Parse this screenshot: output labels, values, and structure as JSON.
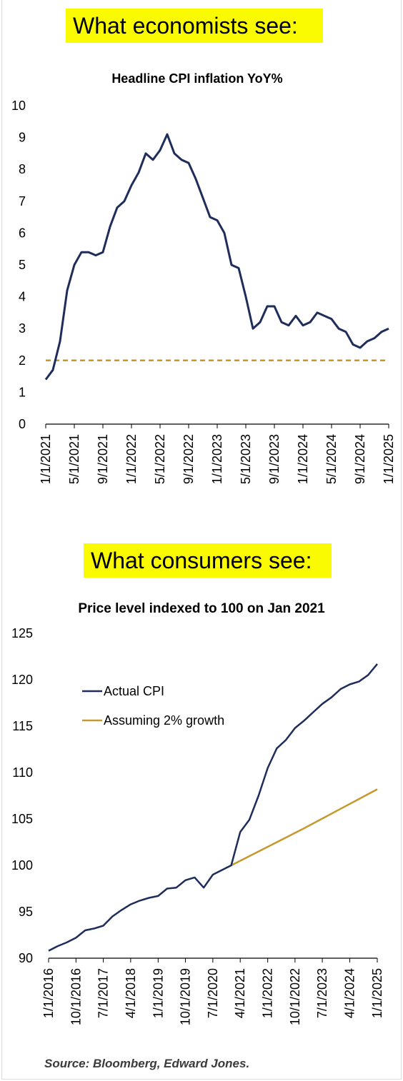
{
  "banners": {
    "economists": "What economists see:",
    "consumers": "What consumers see:"
  },
  "source": "Source: Bloomberg, Edward Jones.",
  "colors": {
    "navy": "#1f2d5a",
    "gold": "#c49a2e",
    "banner": "#fafa00",
    "axis": "#000000"
  },
  "chart_data": [
    {
      "type": "line",
      "title": "Headline CPI inflation YoY%",
      "xlabel": "",
      "ylabel": "",
      "ylim": [
        0,
        10
      ],
      "yticks": [
        0,
        1,
        2,
        3,
        4,
        5,
        6,
        7,
        8,
        9,
        10
      ],
      "xticks": [
        "1/1/2021",
        "5/1/2021",
        "9/1/2021",
        "1/1/2022",
        "5/1/2022",
        "9/1/2022",
        "1/1/2023",
        "5/1/2023",
        "9/1/2023",
        "1/1/2024",
        "5/1/2024",
        "9/1/2024",
        "1/1/2025"
      ],
      "grid": false,
      "series": [
        {
          "values": [
            1.4,
            1.7,
            2.6,
            4.2,
            5.0,
            5.4,
            5.4,
            5.3,
            5.4,
            6.2,
            6.8,
            7.0,
            7.5,
            7.9,
            8.5,
            8.3,
            8.6,
            9.1,
            8.5,
            8.3,
            8.2,
            7.7,
            7.1,
            6.5,
            6.4,
            6.0,
            5.0,
            4.9,
            4.0,
            3.0,
            3.2,
            3.7,
            3.7,
            3.2,
            3.1,
            3.4,
            3.1,
            3.2,
            3.5,
            3.4,
            3.3,
            3.0,
            2.9,
            2.5,
            2.4,
            2.6,
            2.7,
            2.9,
            3.0
          ]
        },
        {
          "values": [
            2,
            2
          ]
        }
      ]
    },
    {
      "type": "line",
      "title": "Price level indexed to 100 on Jan 2021",
      "xlabel": "",
      "ylabel": "",
      "ylim": [
        90,
        125
      ],
      "yticks": [
        90,
        95,
        100,
        105,
        110,
        115,
        120,
        125
      ],
      "xticks": [
        "1/1/2016",
        "10/1/2016",
        "7/1/2017",
        "4/1/2018",
        "1/1/2019",
        "10/1/2019",
        "7/1/2020",
        "4/1/2021",
        "1/1/2022",
        "10/1/2022",
        "7/1/2023",
        "4/1/2024",
        "1/1/2025"
      ],
      "grid": false,
      "legend_position": "top-left",
      "series": [
        {
          "name": "Actual CPI",
          "x": [
            "1/1/2016",
            "4/1/2016",
            "7/1/2016",
            "10/1/2016",
            "1/1/2017",
            "4/1/2017",
            "7/1/2017",
            "10/1/2017",
            "1/1/2018",
            "4/1/2018",
            "7/1/2018",
            "10/1/2018",
            "1/1/2019",
            "4/1/2019",
            "7/1/2019",
            "10/1/2019",
            "1/1/2020",
            "4/1/2020",
            "7/1/2020",
            "10/1/2020",
            "1/1/2021",
            "4/1/2021",
            "7/1/2021",
            "10/1/2021",
            "1/1/2022",
            "4/1/2022",
            "7/1/2022",
            "10/1/2022",
            "1/1/2023",
            "4/1/2023",
            "7/1/2023",
            "10/1/2023",
            "1/1/2024",
            "4/1/2024",
            "7/1/2024",
            "10/1/2024",
            "1/1/2025"
          ],
          "values": [
            90.8,
            91.3,
            91.7,
            92.2,
            93.0,
            93.2,
            93.5,
            94.5,
            95.2,
            95.8,
            96.2,
            96.5,
            96.7,
            97.5,
            97.6,
            98.4,
            98.7,
            97.6,
            99.0,
            99.5,
            100.0,
            103.6,
            104.9,
            107.5,
            110.5,
            112.6,
            113.5,
            114.8,
            115.6,
            116.5,
            117.4,
            118.1,
            119.0,
            119.5,
            119.8,
            120.5,
            121.7
          ]
        },
        {
          "name": "Assuming 2% growth",
          "x": [
            "1/1/2021",
            "1/1/2022",
            "1/1/2023",
            "1/1/2024",
            "1/1/2025"
          ],
          "values": [
            100.0,
            102.0,
            104.0,
            106.1,
            108.2
          ]
        }
      ]
    }
  ]
}
